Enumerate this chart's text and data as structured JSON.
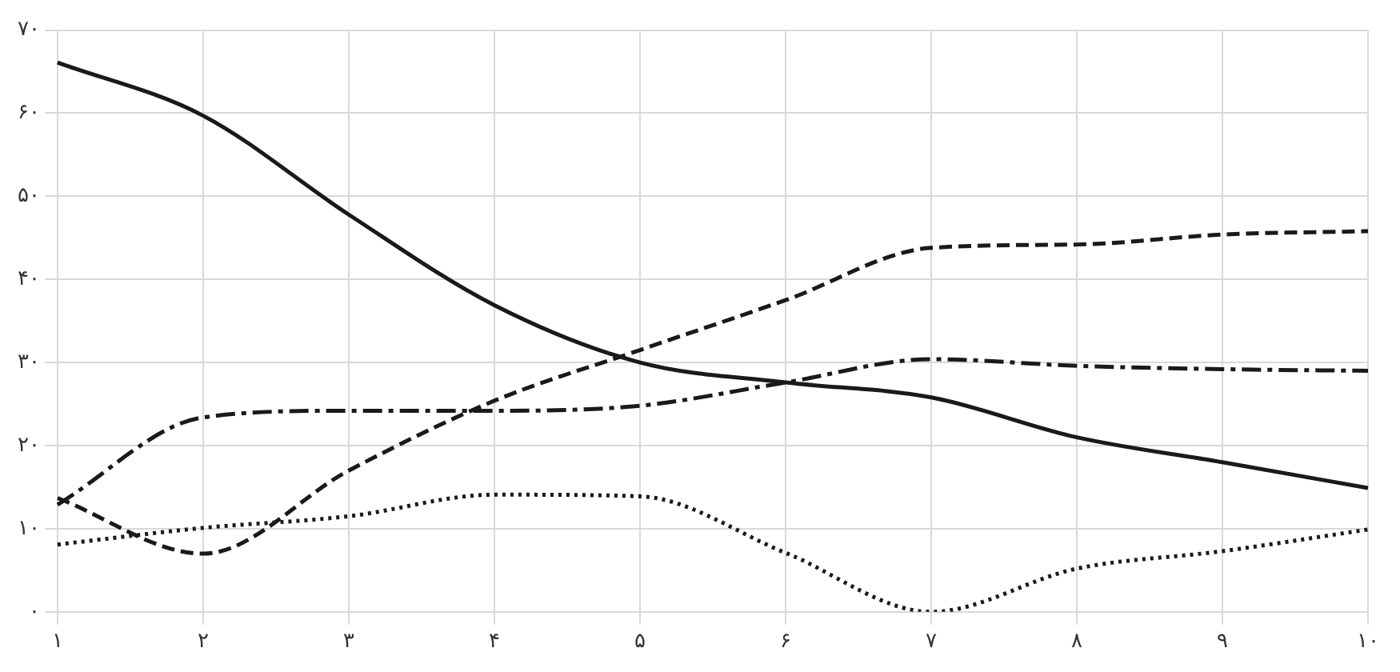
{
  "chart_data": {
    "type": "line",
    "categories": [
      "۱",
      "۲",
      "۳",
      "۴",
      "۵",
      "۶",
      "۷",
      "۸",
      "۹",
      "۱۰"
    ],
    "series": [
      {
        "color": "#1a1a1a",
        "line_style": "solid",
        "values": [
          66.1,
          59.7,
          47.8,
          36.9,
          30,
          27.6,
          25.8,
          21,
          18,
          14.9
        ]
      },
      {
        "color": "#1a1a1a",
        "line_style": "dashed",
        "values": [
          13.7,
          7,
          17,
          25.4,
          31.5,
          37.5,
          43.8,
          44.2,
          45.4,
          45.8
        ]
      },
      {
        "color": "#1a1a1a",
        "line_style": "dashdot",
        "values": [
          12.9,
          23.4,
          24.2,
          24.2,
          24.8,
          27.6,
          30.4,
          29.6,
          29.2,
          29
        ]
      },
      {
        "color": "#1a1a1a",
        "line_style": "dotted",
        "values": [
          8.1,
          10.1,
          11.5,
          14.1,
          13.9,
          7.1,
          0,
          5.2,
          7.3,
          9.9
        ]
      }
    ],
    "ylim": [
      0,
      70
    ],
    "yticks": [
      {
        "value": 0,
        "label": "۰"
      },
      {
        "value": 10,
        "label": "۱۰"
      },
      {
        "value": 20,
        "label": "۲۰"
      },
      {
        "value": 30,
        "label": "۳۰"
      },
      {
        "value": 40,
        "label": "۴۰"
      },
      {
        "value": 50,
        "label": "۵۰"
      },
      {
        "value": 60,
        "label": "۶۰"
      },
      {
        "value": 70,
        "label": "۷۰"
      }
    ],
    "grid": true,
    "legend": false,
    "marker": "none"
  }
}
